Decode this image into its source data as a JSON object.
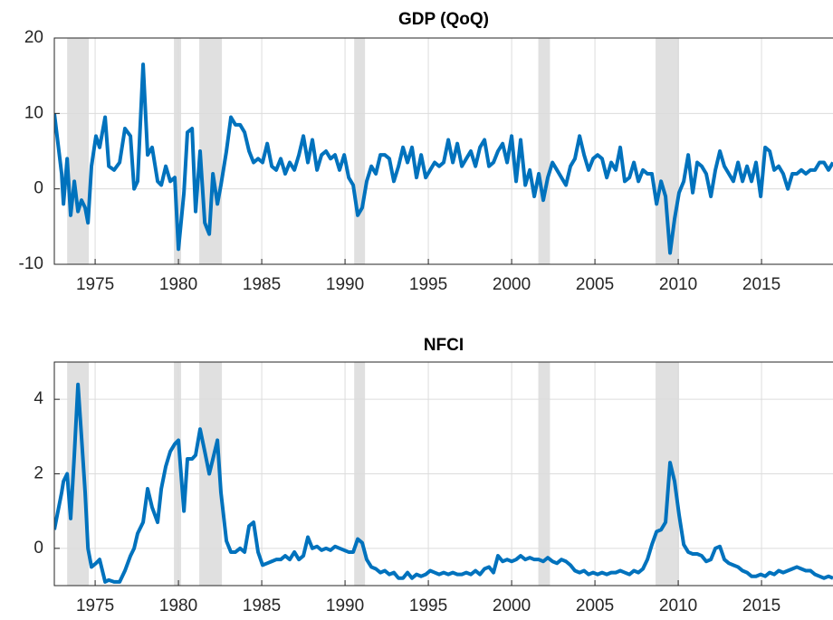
{
  "chart_data": [
    {
      "type": "line",
      "title": "GDP (QoQ)",
      "grid": true,
      "xlim": [
        1972.55,
        2019.29
      ],
      "xticks": [
        1975,
        1980,
        1985,
        1990,
        1995,
        2000,
        2005,
        2010,
        2015
      ],
      "ylim": [
        -10,
        20
      ],
      "yticks": [
        -10,
        0,
        10,
        20
      ],
      "recessions": [
        [
          1973.32,
          1974.62
        ],
        [
          1979.73,
          1980.16
        ],
        [
          1981.25,
          1982.61
        ],
        [
          1990.55,
          1991.2
        ],
        [
          2001.6,
          2002.3
        ],
        [
          2008.64,
          2010.05
        ]
      ],
      "recession_color": "#e0e0e0",
      "x": [
        1972.55,
        1972.99,
        1973.1,
        1973.32,
        1973.53,
        1973.75,
        1973.97,
        1974.18,
        1974.4,
        1974.57,
        1974.78,
        1975.05,
        1975.27,
        1975.6,
        1975.82,
        1976.14,
        1976.47,
        1976.79,
        1977.12,
        1977.34,
        1977.55,
        1977.88,
        1978.15,
        1978.42,
        1978.75,
        1978.97,
        1979.24,
        1979.51,
        1979.78,
        1980.0,
        1980.33,
        1980.54,
        1980.82,
        1981.03,
        1981.3,
        1981.58,
        1981.85,
        1982.07,
        1982.34,
        1982.55,
        1982.88,
        1983.15,
        1983.42,
        1983.7,
        1983.97,
        1984.24,
        1984.51,
        1984.78,
        1985.05,
        1985.33,
        1985.6,
        1985.87,
        1986.14,
        1986.41,
        1986.68,
        1986.96,
        1987.23,
        1987.5,
        1987.77,
        1988.04,
        1988.32,
        1988.59,
        1988.86,
        1989.13,
        1989.4,
        1989.67,
        1989.95,
        1990.22,
        1990.49,
        1990.76,
        1991.03,
        1991.3,
        1991.58,
        1991.85,
        1992.12,
        1992.39,
        1992.66,
        1992.93,
        1993.21,
        1993.48,
        1993.75,
        1994.02,
        1994.29,
        1994.57,
        1994.84,
        1995.11,
        1995.38,
        1995.65,
        1995.92,
        1996.2,
        1996.47,
        1996.74,
        1997.01,
        1997.28,
        1997.55,
        1997.83,
        1998.1,
        1998.37,
        1998.64,
        1998.91,
        1999.18,
        1999.46,
        1999.73,
        2000.0,
        2000.27,
        2000.54,
        2000.82,
        2001.09,
        2001.36,
        2001.63,
        2001.9,
        2002.17,
        2002.45,
        2002.72,
        2002.99,
        2003.26,
        2003.53,
        2003.8,
        2004.08,
        2004.35,
        2004.62,
        2004.89,
        2005.16,
        2005.43,
        2005.71,
        2005.98,
        2006.25,
        2006.52,
        2006.79,
        2007.07,
        2007.34,
        2007.61,
        2007.88,
        2008.15,
        2008.42,
        2008.7,
        2008.97,
        2009.24,
        2009.51,
        2009.78,
        2010.05,
        2010.33,
        2010.6,
        2010.87,
        2011.14,
        2011.41,
        2011.68,
        2011.96,
        2012.23,
        2012.5,
        2012.77,
        2013.04,
        2013.31,
        2013.59,
        2013.86,
        2014.13,
        2014.4,
        2014.67,
        2014.95,
        2015.22,
        2015.49,
        2015.76,
        2016.03,
        2016.3,
        2016.58,
        2016.85,
        2017.12,
        2017.39,
        2017.66,
        2017.94,
        2018.21,
        2018.48,
        2018.75,
        2019.02,
        2019.29
      ],
      "series": [
        {
          "color": "#0072BD",
          "values": [
            10,
            2,
            -2,
            4,
            -3.5,
            1,
            -3,
            -1.5,
            -2.5,
            -4.5,
            3,
            7,
            5.5,
            9.5,
            3,
            2.5,
            3.5,
            8,
            7,
            0,
            1,
            16.5,
            4.5,
            5.5,
            1,
            0.5,
            3,
            1,
            1.5,
            -8,
            -0.5,
            7.5,
            8,
            -3,
            5,
            -4.5,
            -6,
            2,
            -2,
            0.5,
            5,
            9.5,
            8.5,
            8.5,
            7.5,
            5,
            3.5,
            4,
            3.5,
            6,
            3,
            2.5,
            4,
            2,
            3.5,
            2.5,
            4.5,
            7,
            3.5,
            6.5,
            2.5,
            4.5,
            5,
            4,
            4.5,
            2.5,
            4.5,
            1.5,
            0.5,
            -3.5,
            -2.5,
            1,
            3,
            2,
            4.5,
            4.5,
            4,
            1,
            3,
            5.5,
            3.5,
            5.5,
            1.5,
            4.5,
            1.5,
            2.5,
            3.5,
            3,
            3.5,
            6.5,
            3.5,
            6,
            3,
            4,
            5,
            3,
            5.5,
            6.5,
            3,
            3.5,
            5,
            6,
            3.5,
            7,
            1,
            6.5,
            0.5,
            2.5,
            -1,
            2,
            -1.5,
            1.5,
            3.5,
            2.5,
            1.5,
            0.5,
            3,
            4,
            7,
            4.5,
            2.5,
            4,
            4.5,
            4,
            1.5,
            3.5,
            2.5,
            5.5,
            1,
            1.5,
            3.5,
            1,
            2.5,
            2,
            2,
            -2,
            1,
            -1,
            -8.5,
            -4,
            -0.5,
            1,
            4.5,
            -0.5,
            3.5,
            3,
            2,
            -1,
            2.5,
            5,
            3,
            2,
            1,
            3.5,
            1,
            3,
            1,
            3.5,
            -1,
            5.5,
            5,
            2.5,
            3,
            2,
            0,
            2,
            2,
            2.5,
            2,
            2.5,
            2.5,
            3.5,
            3.5,
            2.5,
            3.5
          ]
        }
      ]
    },
    {
      "type": "line",
      "title": "NFCI",
      "grid": true,
      "xlim": [
        1972.55,
        2019.29
      ],
      "xticks": [
        1975,
        1980,
        1985,
        1990,
        1995,
        2000,
        2005,
        2010,
        2015
      ],
      "ylim": [
        -1,
        5
      ],
      "yticks": [
        0,
        2,
        4
      ],
      "recessions": [
        [
          1973.32,
          1974.62
        ],
        [
          1979.73,
          1980.16
        ],
        [
          1981.25,
          1982.61
        ],
        [
          1990.55,
          1991.2
        ],
        [
          2001.6,
          2002.3
        ],
        [
          2008.64,
          2010.05
        ]
      ],
      "recession_color": "#e0e0e0",
      "x": [
        1972.55,
        1972.99,
        1973.1,
        1973.32,
        1973.53,
        1973.75,
        1973.97,
        1974.18,
        1974.4,
        1974.57,
        1974.78,
        1975.05,
        1975.27,
        1975.6,
        1975.82,
        1976.14,
        1976.47,
        1976.79,
        1977.12,
        1977.34,
        1977.55,
        1977.88,
        1978.15,
        1978.42,
        1978.75,
        1978.97,
        1979.24,
        1979.51,
        1979.78,
        1980.0,
        1980.33,
        1980.54,
        1980.82,
        1981.03,
        1981.3,
        1981.58,
        1981.85,
        1982.07,
        1982.34,
        1982.55,
        1982.88,
        1983.15,
        1983.42,
        1983.7,
        1983.97,
        1984.24,
        1984.51,
        1984.78,
        1985.05,
        1985.33,
        1985.6,
        1985.87,
        1986.14,
        1986.41,
        1986.68,
        1986.96,
        1987.23,
        1987.5,
        1987.77,
        1988.04,
        1988.32,
        1988.59,
        1988.86,
        1989.13,
        1989.4,
        1989.67,
        1989.95,
        1990.22,
        1990.49,
        1990.76,
        1991.03,
        1991.3,
        1991.58,
        1991.85,
        1992.12,
        1992.39,
        1992.66,
        1992.93,
        1993.21,
        1993.48,
        1993.75,
        1994.02,
        1994.29,
        1994.57,
        1994.84,
        1995.11,
        1995.38,
        1995.65,
        1995.92,
        1996.2,
        1996.47,
        1996.74,
        1997.01,
        1997.28,
        1997.55,
        1997.83,
        1998.1,
        1998.37,
        1998.64,
        1998.91,
        1999.18,
        1999.46,
        1999.73,
        2000.0,
        2000.27,
        2000.54,
        2000.82,
        2001.09,
        2001.36,
        2001.63,
        2001.9,
        2002.17,
        2002.45,
        2002.72,
        2002.99,
        2003.26,
        2003.53,
        2003.8,
        2004.08,
        2004.35,
        2004.62,
        2004.89,
        2005.16,
        2005.43,
        2005.71,
        2005.98,
        2006.25,
        2006.52,
        2006.79,
        2007.07,
        2007.34,
        2007.61,
        2007.88,
        2008.15,
        2008.42,
        2008.7,
        2008.97,
        2009.24,
        2009.51,
        2009.78,
        2010.05,
        2010.33,
        2010.6,
        2010.87,
        2011.14,
        2011.41,
        2011.68,
        2011.96,
        2012.23,
        2012.5,
        2012.77,
        2013.04,
        2013.31,
        2013.59,
        2013.86,
        2014.13,
        2014.4,
        2014.67,
        2014.95,
        2015.22,
        2015.49,
        2015.76,
        2016.03,
        2016.3,
        2016.58,
        2016.85,
        2017.12,
        2017.39,
        2017.66,
        2017.94,
        2018.21,
        2018.48,
        2018.75,
        2019.02,
        2019.29
      ],
      "series": [
        {
          "color": "#0072BD",
          "values": [
            0.5,
            1.5,
            1.8,
            2,
            0.8,
            2.5,
            4.4,
            3,
            1.5,
            0,
            -0.5,
            -0.4,
            -0.3,
            -0.9,
            -0.85,
            -0.9,
            -0.9,
            -0.6,
            -0.2,
            0,
            0.4,
            0.7,
            1.6,
            1.1,
            0.7,
            1.6,
            2.2,
            2.6,
            2.8,
            2.9,
            1,
            2.4,
            2.4,
            2.5,
            3.2,
            2.6,
            2,
            2.4,
            2.9,
            1.5,
            0.2,
            -0.1,
            -0.1,
            0,
            -0.1,
            0.6,
            0.7,
            -0.1,
            -0.45,
            -0.4,
            -0.35,
            -0.3,
            -0.3,
            -0.2,
            -0.3,
            -0.1,
            -0.3,
            -0.2,
            0.3,
            0,
            0.05,
            -0.05,
            0,
            -0.05,
            0.05,
            0,
            -0.05,
            -0.1,
            -0.1,
            0.25,
            0.15,
            -0.3,
            -0.5,
            -0.55,
            -0.65,
            -0.6,
            -0.7,
            -0.65,
            -0.8,
            -0.8,
            -0.65,
            -0.8,
            -0.7,
            -0.75,
            -0.7,
            -0.6,
            -0.65,
            -0.7,
            -0.65,
            -0.7,
            -0.65,
            -0.7,
            -0.7,
            -0.65,
            -0.7,
            -0.6,
            -0.7,
            -0.55,
            -0.5,
            -0.65,
            -0.2,
            -0.35,
            -0.3,
            -0.35,
            -0.3,
            -0.2,
            -0.3,
            -0.25,
            -0.3,
            -0.3,
            -0.35,
            -0.25,
            -0.35,
            -0.4,
            -0.3,
            -0.35,
            -0.45,
            -0.6,
            -0.65,
            -0.6,
            -0.7,
            -0.65,
            -0.7,
            -0.65,
            -0.7,
            -0.65,
            -0.65,
            -0.6,
            -0.65,
            -0.7,
            -0.6,
            -0.65,
            -0.55,
            -0.3,
            0.1,
            0.45,
            0.5,
            0.7,
            2.3,
            1.8,
            0.9,
            0.1,
            -0.1,
            -0.15,
            -0.15,
            -0.2,
            -0.35,
            -0.3,
            0,
            0.05,
            -0.3,
            -0.4,
            -0.45,
            -0.5,
            -0.6,
            -0.65,
            -0.75,
            -0.75,
            -0.7,
            -0.75,
            -0.65,
            -0.7,
            -0.6,
            -0.65,
            -0.6,
            -0.55,
            -0.5,
            -0.55,
            -0.6,
            -0.6,
            -0.7,
            -0.75,
            -0.8,
            -0.75,
            -0.8
          ]
        }
      ]
    }
  ]
}
